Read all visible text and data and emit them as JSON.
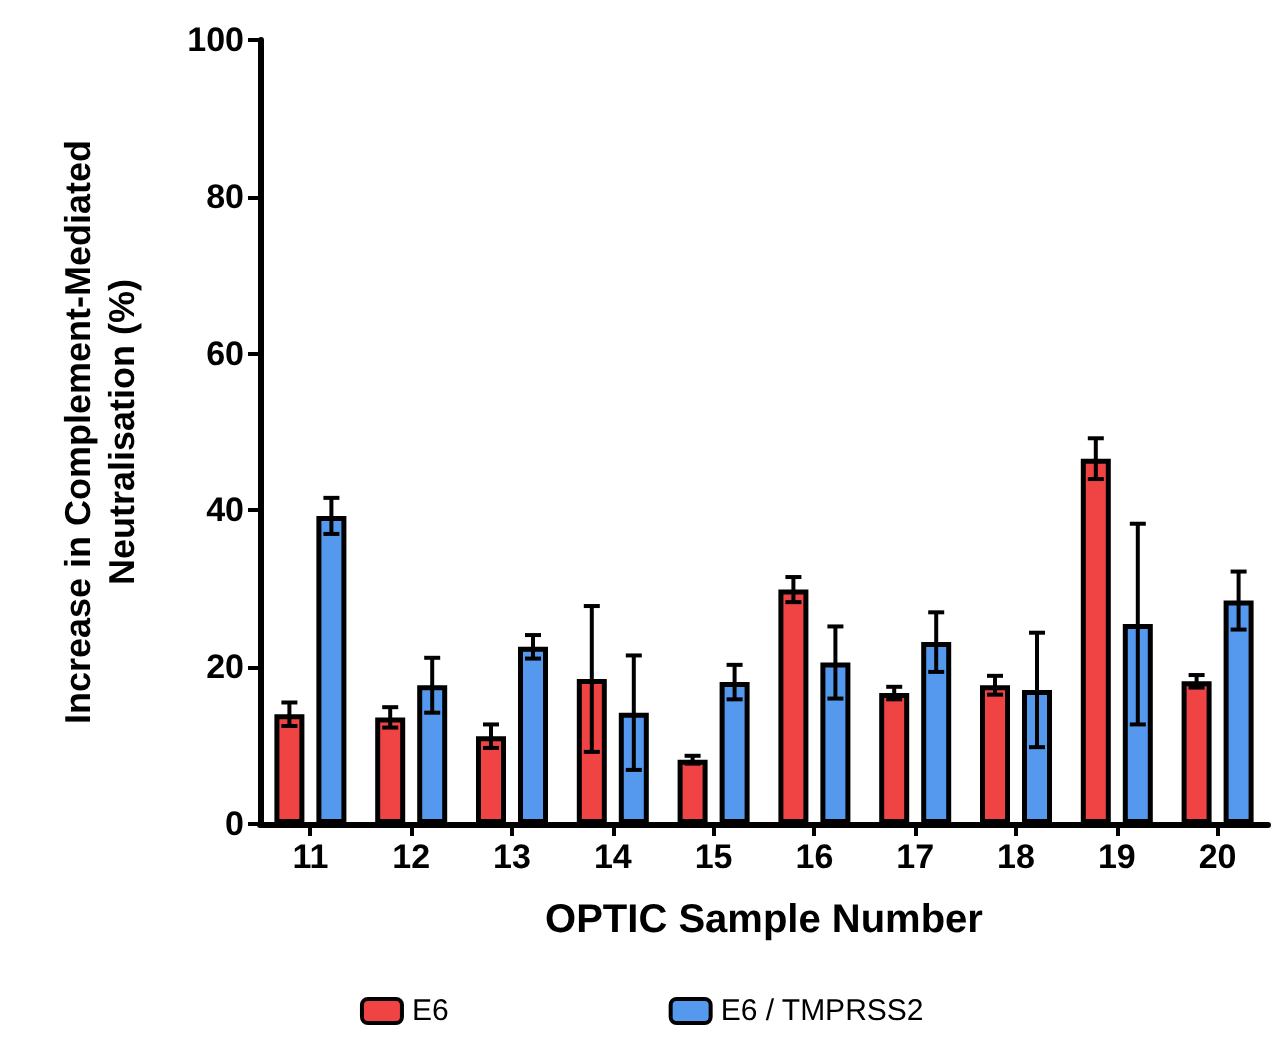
{
  "chart_data": {
    "type": "bar",
    "xlabel": "OPTIC Sample Number",
    "ylabel": "Increase in Complement-Mediated\nNeutralisation (%)",
    "categories": [
      "11",
      "12",
      "13",
      "14",
      "15",
      "16",
      "17",
      "18",
      "19",
      "20"
    ],
    "series": [
      {
        "name": "E6",
        "color": "#f04444",
        "values": [
          14,
          13.6,
          11.2,
          18.5,
          8.2,
          29.9,
          16.7,
          17.7,
          46.6,
          18.2
        ],
        "errors": [
          1.5,
          1.3,
          1.5,
          9.3,
          0.5,
          1.6,
          0.8,
          1.2,
          2.6,
          0.8
        ]
      },
      {
        "name": "E6 / TMPRSS2",
        "color": "#5599ee",
        "values": [
          39.3,
          17.7,
          22.6,
          14.2,
          18.1,
          20.6,
          23.2,
          17.1,
          25.5,
          28.5
        ],
        "errors": [
          2.3,
          3.5,
          1.5,
          7.3,
          2.2,
          4.6,
          3.8,
          7.3,
          12.8,
          3.7
        ]
      }
    ],
    "ylim": [
      0,
      100
    ],
    "yticks": [
      0,
      20,
      40,
      60,
      80,
      100
    ],
    "grid": false,
    "legend": "bottom"
  }
}
